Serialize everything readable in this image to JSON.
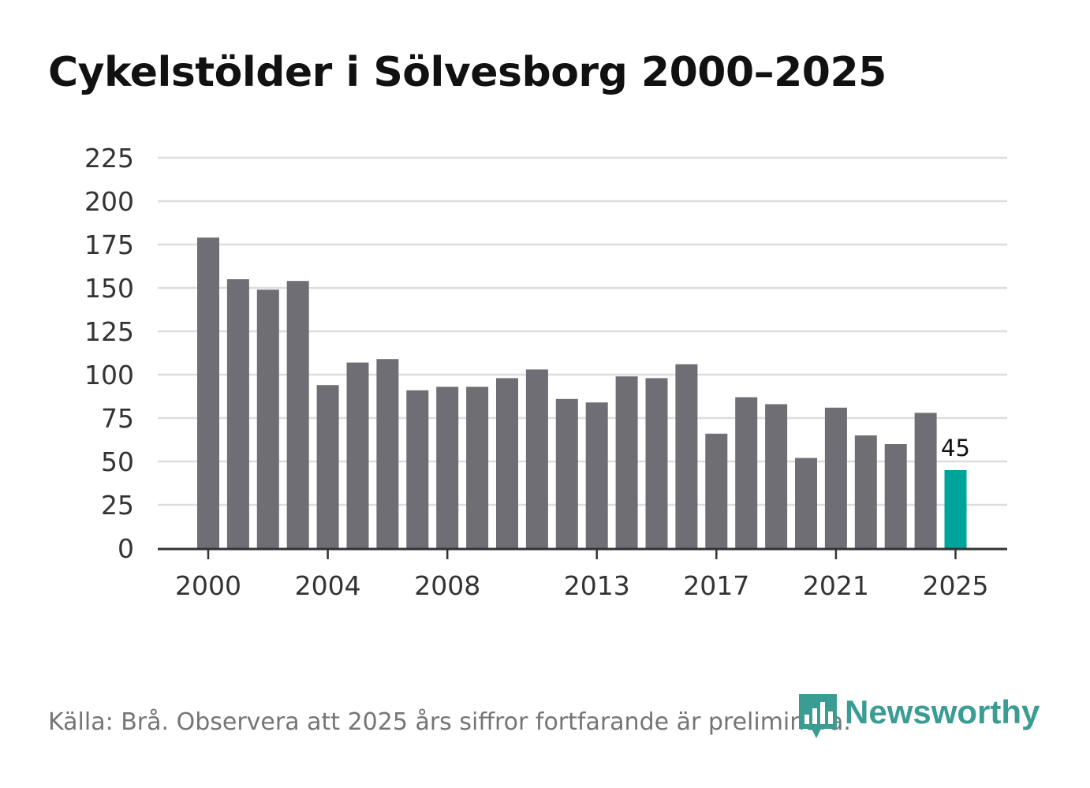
{
  "title": "Cykelstölder i Sölvesborg 2000–2025",
  "footer": "Källa: Brå. Observera att 2025 års siffror fortfarande är preliminära.",
  "brand": {
    "name": "Newsworthy",
    "logo_icon": "bar-chart-speech-bubble-icon",
    "color": "#3a9c93"
  },
  "colors": {
    "bar": "#6f6e74",
    "highlight": "#00a39a",
    "grid": "#dddddd",
    "axis": "#333333",
    "text": "#333333"
  },
  "chart_data": {
    "type": "bar",
    "title": "Cykelstölder i Sölvesborg 2000–2025",
    "xlabel": "",
    "ylabel": "",
    "categories": [
      2000,
      2001,
      2002,
      2003,
      2004,
      2005,
      2006,
      2007,
      2008,
      2009,
      2010,
      2011,
      2012,
      2013,
      2014,
      2015,
      2016,
      2017,
      2018,
      2019,
      2020,
      2021,
      2022,
      2023,
      2024,
      2025
    ],
    "values": [
      179,
      155,
      149,
      154,
      94,
      107,
      109,
      91,
      93,
      93,
      98,
      103,
      86,
      84,
      99,
      98,
      106,
      66,
      87,
      83,
      52,
      81,
      65,
      60,
      78,
      45
    ],
    "x_tick_labels": [
      "2000",
      "2004",
      "2008",
      "2013",
      "2017",
      "2021",
      "2025"
    ],
    "y_ticks": [
      0,
      25,
      50,
      75,
      100,
      125,
      150,
      175,
      200,
      225
    ],
    "ylim": [
      0,
      225
    ],
    "grid": true,
    "highlight_category": 2025,
    "annotations": [
      {
        "category": 2025,
        "text": "45"
      }
    ]
  }
}
